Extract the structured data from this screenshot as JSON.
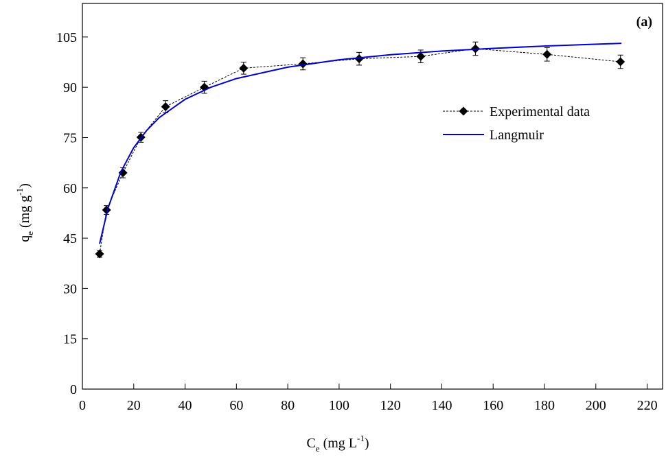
{
  "chart_data": {
    "type": "scatter",
    "annotation": "(a)",
    "x_label": [
      "C",
      "e",
      " (mg L",
      "-1",
      ")"
    ],
    "y_label": [
      "q",
      "e",
      " (mg g",
      "-1",
      ")"
    ],
    "xlim": [
      0,
      226
    ],
    "ylim": [
      0,
      115
    ],
    "xticks": [
      0,
      20,
      40,
      60,
      80,
      100,
      120,
      140,
      160,
      180,
      200,
      220
    ],
    "yticks": [
      0,
      15,
      30,
      45,
      60,
      75,
      90,
      105
    ],
    "legend": "upper right",
    "series": [
      {
        "name": "Experimental data",
        "color": "#000000",
        "marker": "diamond",
        "line": "dashed",
        "x": [
          6.7,
          9.4,
          15.8,
          22.8,
          32.4,
          47.5,
          62.8,
          85.9,
          107.8,
          131.8,
          153.1,
          181,
          209.6
        ],
        "values": [
          40.3,
          53.4,
          64.5,
          75.1,
          84.2,
          90,
          95.7,
          97,
          98.5,
          99.2,
          101.5,
          99.8,
          97.6
        ],
        "errors": [
          1,
          1.3,
          1.5,
          1.5,
          1.8,
          1.8,
          1.8,
          1.8,
          1.9,
          1.9,
          2,
          2,
          2
        ]
      },
      {
        "name": "Langmuir",
        "color": "#0000cc",
        "line": "solid",
        "x": [
          6.7,
          10,
          15,
          20,
          25,
          30,
          40,
          50,
          60,
          80,
          100,
          120,
          140,
          160,
          180,
          210
        ],
        "values": [
          43.3,
          54,
          64.8,
          72,
          77.1,
          81,
          86.4,
          90,
          92.6,
          96,
          98.2,
          99.7,
          100.8,
          101.6,
          102.3,
          103.1
        ]
      }
    ]
  }
}
